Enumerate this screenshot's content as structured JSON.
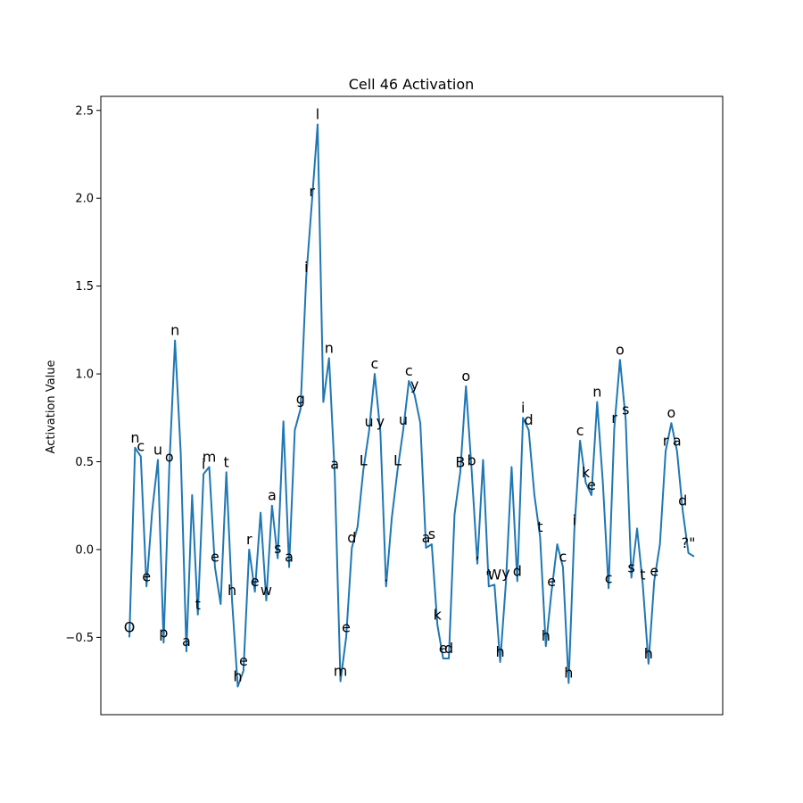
{
  "chart_data": {
    "type": "line",
    "title": "Cell 46 Activation",
    "xlabel": "",
    "ylabel": "Activation Value",
    "ylim": [
      -0.94,
      2.58
    ],
    "yticks": [
      -0.5,
      0.0,
      0.5,
      1.0,
      1.5,
      2.0,
      2.5
    ],
    "ytick_labels": [
      "−0.5",
      "0.0",
      "0.5",
      "1.0",
      "1.5",
      "2.0",
      "2.5"
    ],
    "grid": false,
    "line_color": "#1f77b4",
    "points": [
      {
        "label": "O",
        "value": -0.5
      },
      {
        "label": "n",
        "value": 0.58
      },
      {
        "label": "c",
        "value": 0.53
      },
      {
        "label": "e",
        "value": -0.21
      },
      {
        "label": " ",
        "value": 0.22
      },
      {
        "label": "u",
        "value": 0.51
      },
      {
        "label": "p",
        "value": -0.53
      },
      {
        "label": "o",
        "value": 0.47
      },
      {
        "label": "n",
        "value": 1.19
      },
      {
        "label": " ",
        "value": 0.55
      },
      {
        "label": "a",
        "value": -0.58
      },
      {
        "label": " ",
        "value": 0.31
      },
      {
        "label": "t",
        "value": -0.37
      },
      {
        "label": "i",
        "value": 0.43
      },
      {
        "label": "m",
        "value": 0.47
      },
      {
        "label": "e",
        "value": -0.1
      },
      {
        "label": " ",
        "value": -0.31
      },
      {
        "label": "t",
        "value": 0.44
      },
      {
        "label": "h",
        "value": -0.29
      },
      {
        "label": "h",
        "value": -0.78
      },
      {
        "label": "e",
        "value": -0.69
      },
      {
        "label": "r",
        "value": 0.0
      },
      {
        "label": "e",
        "value": -0.24
      },
      {
        "label": " ",
        "value": 0.21
      },
      {
        "label": "w",
        "value": -0.29
      },
      {
        "label": "a",
        "value": 0.25
      },
      {
        "label": "s",
        "value": -0.05
      },
      {
        "label": " ",
        "value": 0.73
      },
      {
        "label": "a",
        "value": -0.1
      },
      {
        "label": " ",
        "value": 0.68
      },
      {
        "label": "g",
        "value": 0.8
      },
      {
        "label": "i",
        "value": 1.55
      },
      {
        "label": "r",
        "value": 1.98
      },
      {
        "label": "l",
        "value": 2.42
      },
      {
        "label": " ",
        "value": 0.84
      },
      {
        "label": "n",
        "value": 1.09
      },
      {
        "label": "a",
        "value": 0.43
      },
      {
        "label": "m",
        "value": -0.75
      },
      {
        "label": "e",
        "value": -0.5
      },
      {
        "label": "d",
        "value": 0.01
      },
      {
        "label": " ",
        "value": 0.13
      },
      {
        "label": "L",
        "value": 0.45
      },
      {
        "label": "u",
        "value": 0.67
      },
      {
        "label": "c",
        "value": 1.0
      },
      {
        "label": "y",
        "value": 0.67
      },
      {
        "label": ".",
        "value": -0.21
      },
      {
        "label": " ",
        "value": 0.18
      },
      {
        "label": "L",
        "value": 0.45
      },
      {
        "label": "u",
        "value": 0.68
      },
      {
        "label": "c",
        "value": 0.96
      },
      {
        "label": "y",
        "value": 0.88
      },
      {
        "label": " ",
        "value": 0.72
      },
      {
        "label": "a",
        "value": 0.01
      },
      {
        "label": "s",
        "value": 0.03
      },
      {
        "label": "k",
        "value": -0.43
      },
      {
        "label": "e",
        "value": -0.62
      },
      {
        "label": "d",
        "value": -0.62
      },
      {
        "label": " ",
        "value": 0.2
      },
      {
        "label": "B",
        "value": 0.44
      },
      {
        "label": "o",
        "value": 0.93
      },
      {
        "label": "b",
        "value": 0.45
      },
      {
        "label": ",",
        "value": -0.08
      },
      {
        "label": " ",
        "value": 0.51
      },
      {
        "label": "\"",
        "value": -0.21
      },
      {
        "label": "W",
        "value": -0.2
      },
      {
        "label": "h",
        "value": -0.64
      },
      {
        "label": "y",
        "value": -0.19
      },
      {
        "label": " ",
        "value": 0.47
      },
      {
        "label": "d",
        "value": -0.18
      },
      {
        "label": "i",
        "value": 0.75
      },
      {
        "label": "d",
        "value": 0.68
      },
      {
        "label": " ",
        "value": 0.31
      },
      {
        "label": "t",
        "value": 0.07
      },
      {
        "label": "h",
        "value": -0.55
      },
      {
        "label": "e",
        "value": -0.24
      },
      {
        "label": " ",
        "value": 0.03
      },
      {
        "label": "c",
        "value": -0.1
      },
      {
        "label": "h",
        "value": -0.76
      },
      {
        "label": "i",
        "value": 0.11
      },
      {
        "label": "c",
        "value": 0.62
      },
      {
        "label": "k",
        "value": 0.38
      },
      {
        "label": "e",
        "value": 0.31
      },
      {
        "label": "n",
        "value": 0.84
      },
      {
        "label": " ",
        "value": 0.38
      },
      {
        "label": "c",
        "value": -0.22
      },
      {
        "label": "r",
        "value": 0.69
      },
      {
        "label": "o",
        "value": 1.08
      },
      {
        "label": "s",
        "value": 0.74
      },
      {
        "label": "s",
        "value": -0.16
      },
      {
        "label": " ",
        "value": 0.12
      },
      {
        "label": "t",
        "value": -0.2
      },
      {
        "label": "h",
        "value": -0.65
      },
      {
        "label": "e",
        "value": -0.18
      },
      {
        "label": " ",
        "value": 0.03
      },
      {
        "label": "r",
        "value": 0.56
      },
      {
        "label": "o",
        "value": 0.72
      },
      {
        "label": "a",
        "value": 0.56
      },
      {
        "label": "d",
        "value": 0.22
      },
      {
        "label": "?\"",
        "value": -0.02
      },
      {
        "label": " ",
        "value": -0.04
      }
    ]
  }
}
